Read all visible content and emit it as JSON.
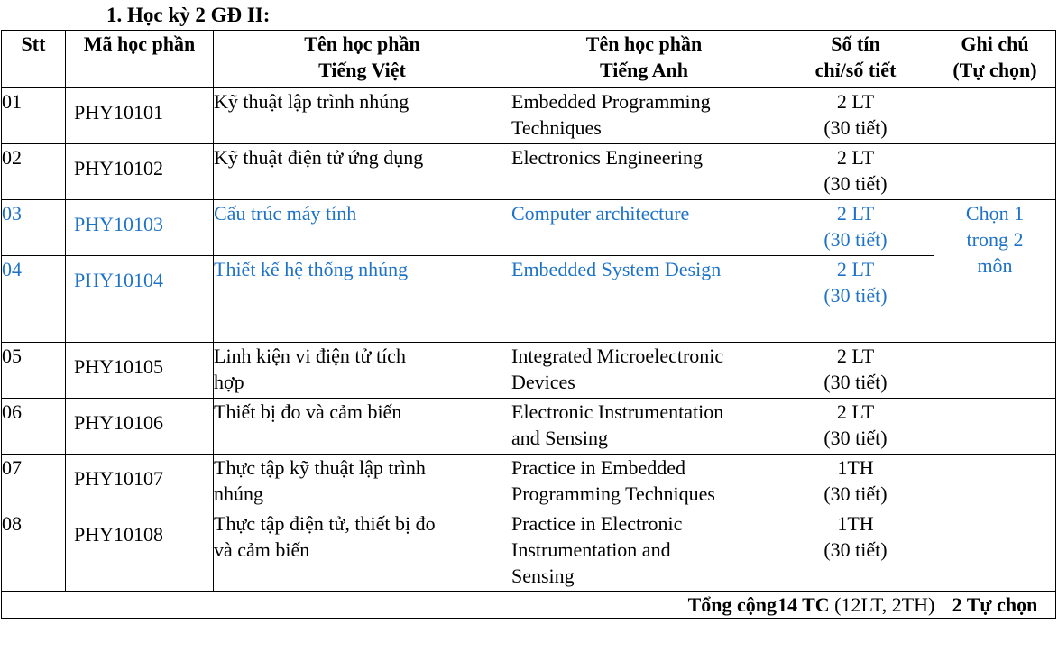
{
  "heading": "1. Học kỳ 2 GĐ II:",
  "columns": {
    "stt": "Stt",
    "code": "Mã học phần",
    "vi_line1": "Tên học phần",
    "vi_line2": "Tiếng Việt",
    "en_line1": "Tên học phần",
    "en_line2": "Tiếng Anh",
    "credits_line1": "Số tín",
    "credits_line2": "chỉ/số tiết",
    "note_line1": "Ghi chú",
    "note_line2": "(Tự chọn)"
  },
  "rows": [
    {
      "stt": "01",
      "code": "PHY10101",
      "vi": [
        "Kỹ thuật lập trình nhúng"
      ],
      "en": [
        "Embedded Programming",
        "Techniques"
      ],
      "credits": "2 LT",
      "hours": "(30 tiết)"
    },
    {
      "stt": "02",
      "code": "PHY10102",
      "vi": [
        "Kỹ thuật điện tử ứng dụng"
      ],
      "en": [
        "Electronics Engineering"
      ],
      "credits": "2 LT",
      "hours": "(30 tiết)"
    },
    {
      "stt": "03",
      "code": "PHY10103",
      "vi": [
        "Cấu trúc máy tính"
      ],
      "en": [
        "Computer architecture"
      ],
      "credits": "2 LT",
      "hours": "(30 tiết)"
    },
    {
      "stt": "04",
      "code": "PHY10104",
      "vi": [
        "Thiết kế hệ thống nhúng"
      ],
      "en": [
        "Embedded System Design"
      ],
      "credits": "2 LT",
      "hours": "(30 tiết)"
    },
    {
      "stt": "05",
      "code": "PHY10105",
      "vi": [
        "Linh kiện vi điện tử tích",
        "hợp"
      ],
      "en": [
        "Integrated Microelectronic",
        "Devices"
      ],
      "credits": "2 LT",
      "hours": "(30 tiết)"
    },
    {
      "stt": "06",
      "code": "PHY10106",
      "vi": [
        "Thiết bị đo và cảm biến"
      ],
      "en": [
        "Electronic Instrumentation",
        "and Sensing"
      ],
      "credits": "2 LT",
      "hours": "(30 tiết)"
    },
    {
      "stt": "07",
      "code": "PHY10107",
      "vi": [
        "Thực tập kỹ thuật lập trình",
        "nhúng"
      ],
      "en": [
        "Practice in Embedded",
        "Programming Techniques"
      ],
      "credits": "1TH",
      "hours": "(30 tiết)"
    },
    {
      "stt": "08",
      "code": "PHY10108",
      "vi": [
        "Thực tập điện tử, thiết bị đo",
        "và cảm biến"
      ],
      "en": [
        "Practice in Electronic",
        "Instrumentation and",
        "Sensing"
      ],
      "credits": "1TH",
      "hours": "(30 tiết)"
    }
  ],
  "elective_note": [
    "Chọn 1",
    "trong 2",
    "môn"
  ],
  "total": {
    "label": "Tổng cộng",
    "credits_bold": "14 TC",
    "credits_detail": "(12LT, 2TH)",
    "note": "2 Tự chọn"
  },
  "colors": {
    "text": "#000000",
    "elective": "#1f73c7",
    "border": "#000000"
  }
}
